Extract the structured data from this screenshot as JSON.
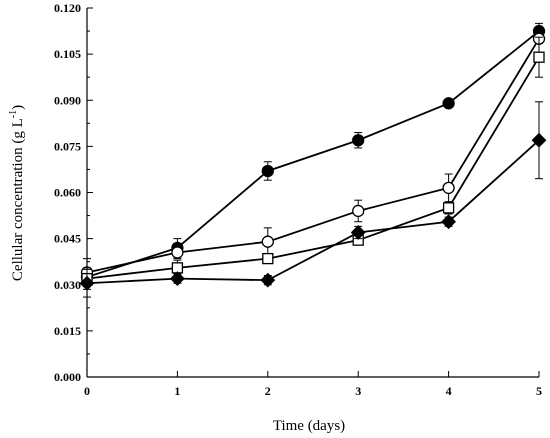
{
  "chart_data": {
    "type": "line",
    "title": "",
    "xlabel": "Time (days)",
    "ylabel_main": "Cellular concentration (g L",
    "ylabel_sup": "-1",
    "ylabel_close": ")",
    "x": [
      0,
      1,
      2,
      3,
      4,
      5
    ],
    "xlim": [
      0,
      5
    ],
    "ylim": [
      0,
      0.12
    ],
    "x_ticks": [
      "0",
      "1",
      "2",
      "3",
      "4",
      "5"
    ],
    "y_ticks": [
      "0.000",
      "0.015",
      "0.030",
      "0.045",
      "0.060",
      "0.075",
      "0.090",
      "0.105",
      "0.120"
    ],
    "grid": false,
    "series": [
      {
        "marker": "filled-circle",
        "values": [
          0.0325,
          0.042,
          0.067,
          0.077,
          0.089,
          0.1125
        ],
        "errors": [
          0.0025,
          0.003,
          0.003,
          0.0025,
          0.0005,
          0.0025
        ]
      },
      {
        "marker": "open-circle",
        "values": [
          0.034,
          0.0405,
          0.044,
          0.054,
          0.0615,
          0.11
        ],
        "errors": [
          0.0045,
          0.002,
          0.0045,
          0.0035,
          0.0045,
          0.0015
        ]
      },
      {
        "marker": "open-square",
        "values": [
          0.032,
          0.0355,
          0.0385,
          0.0445,
          0.055,
          0.104
        ],
        "errors": [
          0.0035,
          0.0025,
          0.0015,
          0.0015,
          0.002,
          0.0065
        ]
      },
      {
        "marker": "filled-diamond",
        "values": [
          0.0305,
          0.032,
          0.0315,
          0.047,
          0.0505,
          0.077
        ],
        "errors": [
          0.0045,
          0.0015,
          0.0015,
          0.002,
          0.0015,
          0.0125
        ]
      }
    ]
  }
}
